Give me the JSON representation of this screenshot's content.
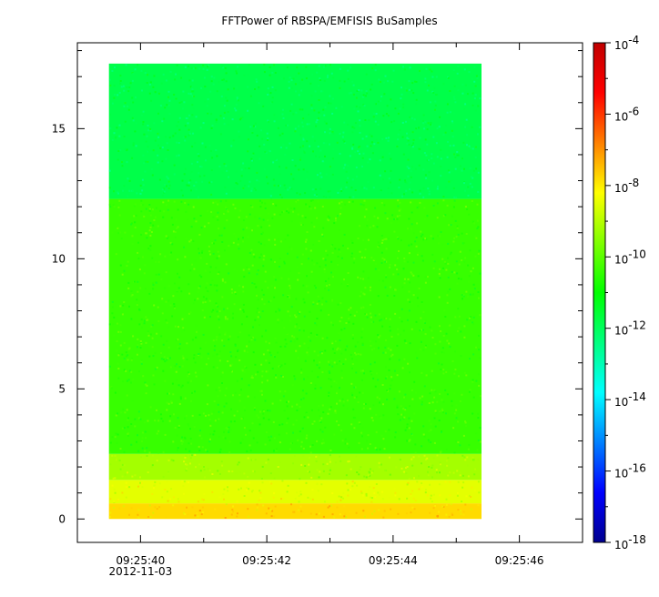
{
  "chart_data": {
    "type": "heatmap",
    "title": "FFTPower of RBSPA/EMFISIS  BuSamples",
    "xlabel": "",
    "ylabel": "",
    "x_axis": {
      "type": "time",
      "ticks": [
        "09:25:40",
        "09:25:42",
        "09:25:44",
        "09:25:46"
      ],
      "date_label": "2012-11-03",
      "range": [
        "09:25:39",
        "09:25:47"
      ],
      "data_start": "09:25:39.5",
      "data_end": "09:25:45.4"
    },
    "y_axis": {
      "range": [
        -0.9,
        18.3
      ],
      "ticks": [
        0,
        5,
        10,
        15
      ],
      "data_range": [
        0,
        17.5
      ]
    },
    "z_axis": {
      "scale": "log",
      "range": [
        1e-18,
        0.0001
      ],
      "tick_bases": [
        "10",
        "10",
        "10",
        "10",
        "10",
        "10",
        "10",
        "10"
      ],
      "tick_exponents": [
        "-4",
        "-6",
        "-8",
        "-10",
        "-12",
        "-14",
        "-16",
        "-18"
      ],
      "colormap": [
        "#00008f",
        "#0000ff",
        "#0080ff",
        "#00ffff",
        "#00ff80",
        "#00ff00",
        "#80ff00",
        "#ffff00",
        "#ff8000",
        "#ff0000",
        "#c00000"
      ]
    },
    "bands": [
      {
        "y": [
          0.0,
          0.6
        ],
        "log10_power": -7.8
      },
      {
        "y": [
          0.6,
          1.5
        ],
        "log10_power": -8.5
      },
      {
        "y": [
          1.5,
          2.5
        ],
        "log10_power": -9.2
      },
      {
        "y": [
          2.5,
          12.3
        ],
        "log10_power": -10.4
      },
      {
        "y": [
          12.3,
          17.5
        ],
        "log10_power": -11.8
      }
    ]
  }
}
